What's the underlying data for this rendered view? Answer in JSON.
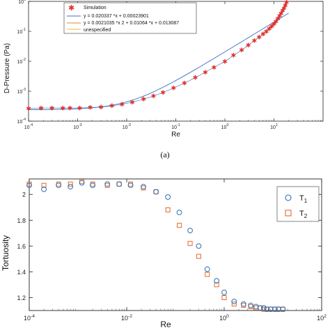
{
  "caption": "(a)",
  "chart_data": [
    {
      "type": "scatter",
      "xlabel": "Re",
      "ylabel": "D-Pressure (Pa)",
      "xscale": "log",
      "yscale": "log",
      "xlim": [
        0.0001,
        100
      ],
      "ylim": [
        0.0001,
        1
      ],
      "x_ticks": [
        "10^-4",
        "10^-3",
        "10^-2",
        "10^-1",
        "10^0",
        "10^1"
      ],
      "y_ticks": [
        "10^-4",
        "10^-3",
        "10^-2",
        "10^-1",
        "10^0"
      ],
      "legend_position": "top-left",
      "series": [
        {
          "name": "Simulation",
          "marker": "asterisk",
          "color": "#e0312b",
          "x": [
            0.0001,
            0.00018,
            0.0003,
            0.0005,
            0.0007,
            0.0011,
            0.0018,
            0.003,
            0.005,
            0.008,
            0.013,
            0.022,
            0.035,
            0.055,
            0.09,
            0.15,
            0.25,
            0.4,
            0.6,
            1.0,
            1.5,
            2.2,
            3.0,
            4.0,
            5.0,
            6.0,
            7.0,
            8.0,
            9.0,
            10.0,
            11.0,
            12.0,
            13.0,
            14.0,
            15.0,
            16.0,
            17.0,
            18.0
          ],
          "y": [
            0.00027,
            0.00028,
            0.00028,
            0.00028,
            0.00028,
            0.00028,
            0.00029,
            0.0003,
            0.00033,
            0.00037,
            0.00044,
            0.00055,
            0.0007,
            0.00092,
            0.0013,
            0.0019,
            0.0029,
            0.0044,
            0.0064,
            0.01,
            0.016,
            0.024,
            0.035,
            0.05,
            0.065,
            0.082,
            0.1,
            0.125,
            0.15,
            0.18,
            0.22,
            0.27,
            0.33,
            0.4,
            0.5,
            0.6,
            0.75,
            0.95
          ]
        }
      ],
      "fit_lines": [
        {
          "name": "y = 0.020337 *x + 0.00023901",
          "color": "#3b6fc4",
          "a2": 0,
          "a1": 0.020337,
          "a0": 0.00023901
        },
        {
          "name": "y = 0.0021035 *x     2 + 0.01064 *x + 0.013087",
          "color": "#e08a2e",
          "a2": 0.0021035,
          "a1": 0.01064,
          "a0": 0.013087
        },
        {
          "name": "unespecified",
          "color": "#e6c229"
        }
      ]
    },
    {
      "type": "scatter",
      "xlabel": "Re",
      "ylabel": "Tortuosity",
      "xscale": "log",
      "xlim": [
        0.0001,
        100
      ],
      "ylim": [
        1.1,
        2.12
      ],
      "x_ticks": [
        "10^-4",
        "10^-2",
        "10^0",
        "10^2"
      ],
      "y_ticks": [
        "1.2",
        "1.4",
        "1.6",
        "1.8",
        "2"
      ],
      "legend_position": "top-right",
      "series": [
        {
          "name": "T1",
          "marker": "circle",
          "color": "#2f6db5",
          "x": [
            0.0001,
            0.0002,
            0.0004,
            0.0007,
            0.0012,
            0.002,
            0.004,
            0.007,
            0.012,
            0.022,
            0.04,
            0.07,
            0.12,
            0.2,
            0.3,
            0.45,
            0.7,
            1.0,
            1.6,
            2.5,
            3.5,
            4.5,
            5.5,
            6.5,
            7.5,
            9,
            11,
            13,
            16
          ],
          "y": [
            2.07,
            2.04,
            2.07,
            2.06,
            2.09,
            2.07,
            2.08,
            2.08,
            2.07,
            2.06,
            2.02,
            1.98,
            1.86,
            1.72,
            1.6,
            1.42,
            1.33,
            1.24,
            1.17,
            1.15,
            1.14,
            1.13,
            1.12,
            1.12,
            1.11,
            1.11,
            1.11,
            1.11,
            1.11
          ]
        },
        {
          "name": "T2",
          "marker": "square",
          "color": "#e06a2c",
          "x": [
            0.0001,
            0.0002,
            0.0004,
            0.0007,
            0.0012,
            0.002,
            0.004,
            0.007,
            0.012,
            0.022,
            0.04,
            0.07,
            0.12,
            0.2,
            0.3,
            0.45,
            0.7,
            1.0,
            1.6,
            2.5,
            3.5,
            4.5,
            5.5,
            6.5,
            7.5,
            9,
            11,
            13,
            16
          ],
          "y": [
            2.08,
            2.07,
            2.08,
            2.08,
            2.1,
            2.08,
            2.07,
            2.08,
            2.08,
            2.05,
            2.02,
            1.88,
            1.76,
            1.62,
            1.52,
            1.38,
            1.3,
            1.2,
            1.15,
            1.14,
            1.13,
            1.12,
            1.12,
            1.11,
            1.11,
            1.11,
            1.11,
            1.11,
            1.11
          ]
        }
      ],
      "legend_labels": {
        "T1_base": "T",
        "T1_sub": "1",
        "T2_base": "T",
        "T2_sub": "2"
      }
    }
  ]
}
